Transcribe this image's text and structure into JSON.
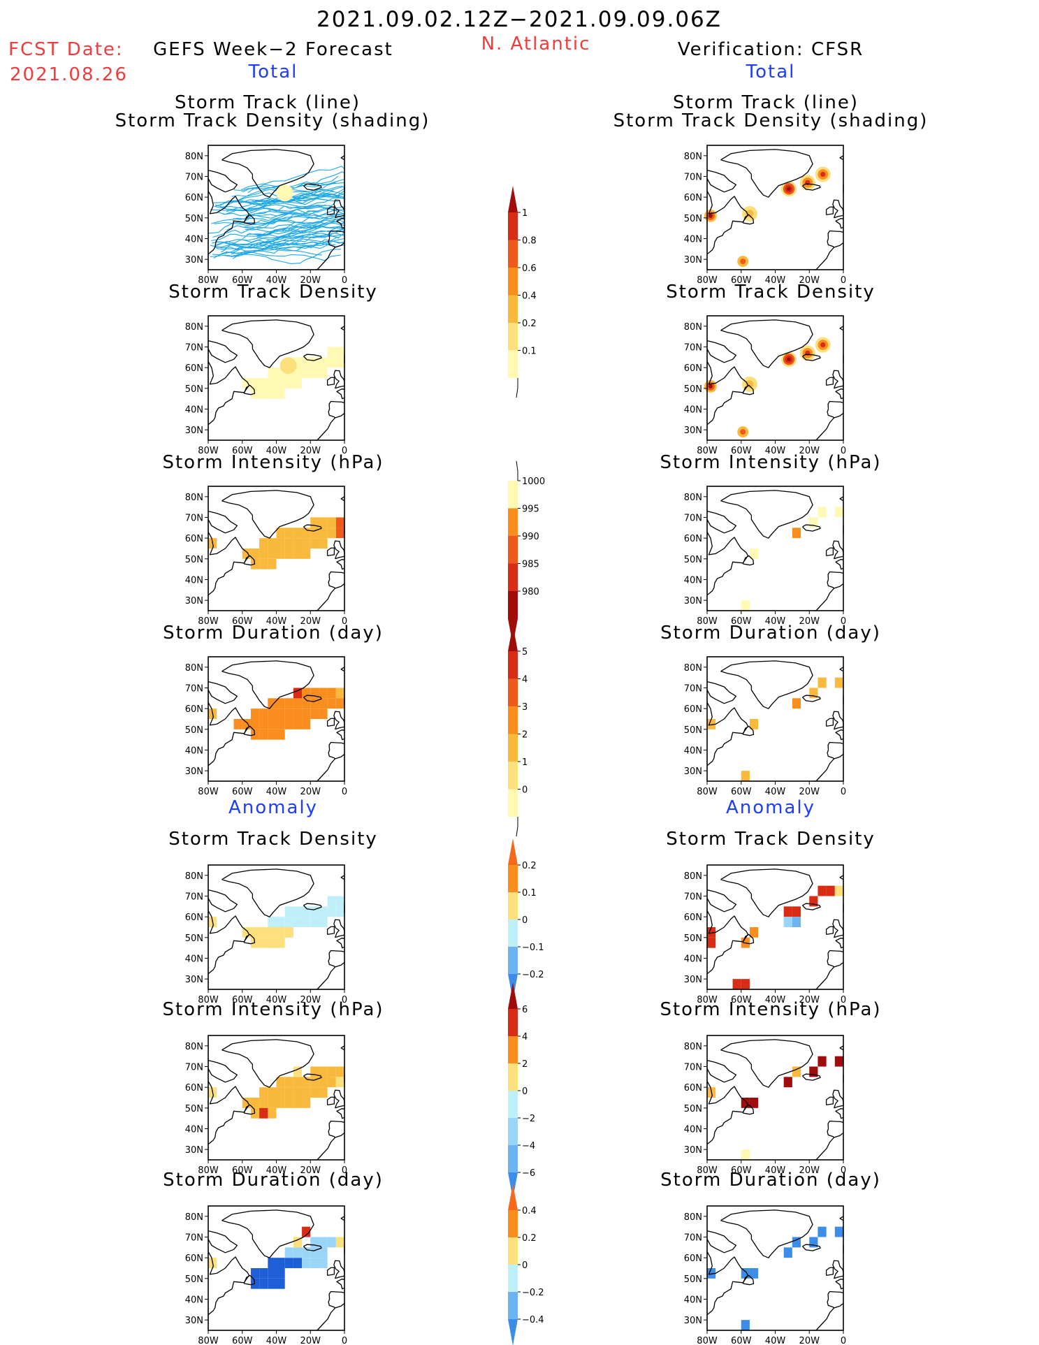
{
  "header": {
    "date_range": "2021.09.02.12Z−2021.09.09.06Z",
    "fcst_label": "FCST Date:",
    "fcst_date": "2021.08.26",
    "model_title": "GEFS Week−2 Forecast",
    "region": "N. Atlantic",
    "verification": "Verification: CFSR"
  },
  "sections": {
    "total": "Total",
    "anomaly": "Anomaly"
  },
  "panel_titles": {
    "track_line": "Storm Track (line)",
    "track_shading": "Storm Track Density (shading)",
    "density": "Storm Track Density",
    "intensity": "Storm Intensity (hPa)",
    "duration": "Storm Duration (day)"
  },
  "map_axes": {
    "x_ticks": [
      "80W",
      "60W",
      "40W",
      "20W",
      "0"
    ],
    "y_ticks": [
      "80N",
      "70N",
      "60N",
      "50N",
      "40N",
      "30N"
    ]
  },
  "colors": {
    "yellow_light": "#fff9b4",
    "yellow": "#fbe07c",
    "orange_light": "#f9b93c",
    "orange": "#f98d1e",
    "red_orange": "#ee5a1a",
    "red": "#d82c14",
    "dark_red": "#a00c0c",
    "cyan_light": "#bff0fa",
    "cyan": "#9ad5f7",
    "blue_light": "#6cb3f3",
    "blue": "#3c8de8",
    "blue_dark": "#1e5fd8",
    "track_line": "#1aa7e8"
  },
  "chart_data": [
    {
      "type": "heatmap",
      "title": "Storm Track Density colorbar (Total)",
      "levels": [
        "0.1",
        "0.2",
        "0.4",
        "0.6",
        "0.8",
        "1"
      ]
    },
    {
      "type": "heatmap",
      "title": "Storm Intensity colorbar (Total)",
      "levels": [
        "1000",
        "995",
        "990",
        "985",
        "980"
      ]
    },
    {
      "type": "heatmap",
      "title": "Storm Duration colorbar (Total)",
      "levels": [
        "5",
        "4",
        "3",
        "2",
        "1",
        "0"
      ]
    },
    {
      "type": "heatmap",
      "title": "Storm Track Density colorbar (Anomaly)",
      "levels": [
        "0.2",
        "0.1",
        "0",
        "−0.1",
        "−0.2"
      ]
    },
    {
      "type": "heatmap",
      "title": "Storm Intensity colorbar (Anomaly)",
      "levels": [
        "6",
        "4",
        "2",
        "0",
        "−2",
        "−4",
        "−6"
      ]
    },
    {
      "type": "heatmap",
      "title": "Storm Duration colorbar (Anomaly)",
      "levels": [
        "0.4",
        "0.2",
        "0",
        "−0.2",
        "−0.4"
      ]
    }
  ]
}
